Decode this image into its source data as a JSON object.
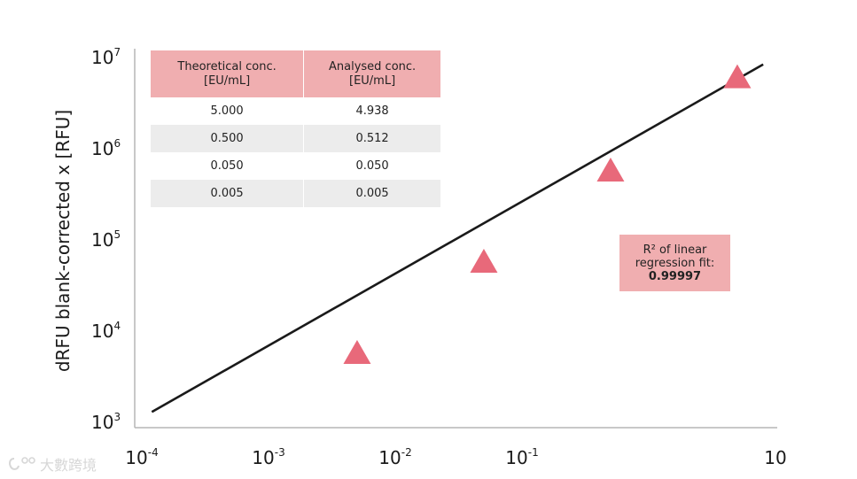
{
  "chart_data": {
    "type": "scatter",
    "ylabel": "dRFU blank-corrected x [RFU]",
    "x_scale": "log",
    "y_scale": "log",
    "xlim": [
      0.0001,
      10
    ],
    "ylim": [
      1000,
      10000000
    ],
    "x_ticks": [
      {
        "base": "10",
        "exp": "-4",
        "value": 0.0001
      },
      {
        "base": "10",
        "exp": "-3",
        "value": 0.001
      },
      {
        "base": "10",
        "exp": "-2",
        "value": 0.01
      },
      {
        "base": "10",
        "exp": "-1",
        "value": 0.1
      },
      {
        "base": "10",
        "exp": "",
        "value": 10
      }
    ],
    "y_ticks": [
      {
        "base": "10",
        "exp": "3",
        "value": 1000
      },
      {
        "base": "10",
        "exp": "4",
        "value": 10000
      },
      {
        "base": "10",
        "exp": "5",
        "value": 100000
      },
      {
        "base": "10",
        "exp": "6",
        "value": 1000000
      },
      {
        "base": "10",
        "exp": "7",
        "value": 10000000
      }
    ],
    "points": [
      {
        "x": 0.005,
        "y": 5500
      },
      {
        "x": 0.05,
        "y": 55000
      },
      {
        "x": 0.5,
        "y": 550000
      },
      {
        "x": 5.0,
        "y": 5800000
      }
    ],
    "fit_line": {
      "x": [
        0.00012,
        8.0
      ],
      "y": [
        1300,
        8400000
      ]
    },
    "marker_color": "#e8697a",
    "line_color": "#1a1a1a",
    "grid": false
  },
  "table": {
    "headers": [
      {
        "line1": "Theoretical conc.",
        "line2": "[EU/mL]"
      },
      {
        "line1": "Analysed conc.",
        "line2": "[EU/mL]"
      }
    ],
    "rows": [
      [
        "5.000",
        "4.938"
      ],
      [
        "0.500",
        "0.512"
      ],
      [
        "0.050",
        "0.050"
      ],
      [
        "0.005",
        "0.005"
      ]
    ]
  },
  "r2_box": {
    "line1": "R² of linear",
    "line2": "regression fit:",
    "value": "0.99997"
  },
  "watermark": {
    "icon": "spiral-logo-icon",
    "text": "大數跨境"
  },
  "colors": {
    "header_pink": "#f0aeb0",
    "row_grey": "#ececec",
    "marker_pink": "#e8697a"
  }
}
